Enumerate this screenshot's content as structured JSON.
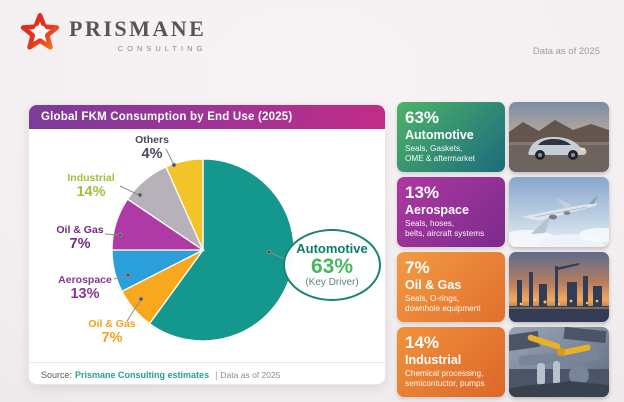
{
  "page": {
    "background": "#f2eef0",
    "data_as_of": "Data as of 2025"
  },
  "brand": {
    "name": "PRISMANE",
    "tagline": "CONSULTING",
    "logo_colors": [
      "#d7271d",
      "#f4801f"
    ]
  },
  "panel": {
    "title": "Global FKM Consumption by End Use (2025)",
    "title_gradient": [
      "#7b3c99",
      "#c02d87"
    ],
    "source_prefix": "Source:",
    "source_link": "Prismane Consulting estimates",
    "source_divider": "|",
    "source_suffix": "Data as of 2025"
  },
  "chart_data": {
    "type": "pie",
    "title": "Global FKM Consumption by End Use (2025)",
    "unit": "%",
    "slices": [
      {
        "label": "Automotive",
        "value": 63,
        "color": "#14988e",
        "start_angle": 0,
        "end_angle": 216
      },
      {
        "label": "Oil & Gas",
        "value": 7,
        "color": "#f8a81c",
        "start_angle": 216,
        "end_angle": 243
      },
      {
        "label": "Aerospace",
        "value": 13,
        "color": "#2b9fd9",
        "start_angle": 243,
        "end_angle": 270
      },
      {
        "label": "Oil & Gas",
        "value": 7,
        "color": "#af3aa5",
        "start_angle": 270,
        "end_angle": 304
      },
      {
        "label": "Industrial",
        "value": 14,
        "color": "#b7b2b9",
        "start_angle": 304,
        "end_angle": 336
      },
      {
        "label": "Others",
        "value": 4,
        "color": "#f4c32a",
        "start_angle": 336,
        "end_angle": 360
      }
    ]
  },
  "pie_labels": [
    {
      "name": "Others",
      "pct": "4%",
      "color": "#47495c"
    },
    {
      "name": "Industrial",
      "pct": "14%",
      "color": "#9cc23c"
    },
    {
      "name": "Oil & Gas",
      "pct": "7%",
      "color": "#6f2c80"
    },
    {
      "name": "Aerospace",
      "pct": "13%",
      "color": "#8a3396"
    },
    {
      "name": "Oil & Gas",
      "pct": "7%",
      "color": "#f5a21b"
    }
  ],
  "callout": {
    "label": "Automotive",
    "value": "63%",
    "note": "(Key Driver)",
    "border_color": "#1a8374",
    "label_color": "#0e7b6c",
    "value_color": "#45b85a",
    "note_color": "#5f8782"
  },
  "cards": [
    {
      "pct": "63%",
      "title": "Automotive",
      "desc": "Seals, Gaskets,\nOME & aftermarket",
      "gradient": [
        "#4db368",
        "#1d6b7c"
      ]
    },
    {
      "pct": "13%",
      "title": "Aerospace",
      "desc": "Seals, hoses,\nbelts, aircraft systems",
      "gradient": [
        "#ad39a1",
        "#7c2a8d"
      ]
    },
    {
      "pct": "7%",
      "title": "Oil & Gas",
      "desc": "Seals, O-rings,\ndownhole equipment",
      "gradient": [
        "#f39a43",
        "#e0702d"
      ]
    },
    {
      "pct": "14%",
      "title": "Industrial",
      "desc": "Chemical processing,\nsemicontuctor, pumps",
      "gradient": [
        "#f0923c",
        "#dd6629"
      ]
    }
  ]
}
